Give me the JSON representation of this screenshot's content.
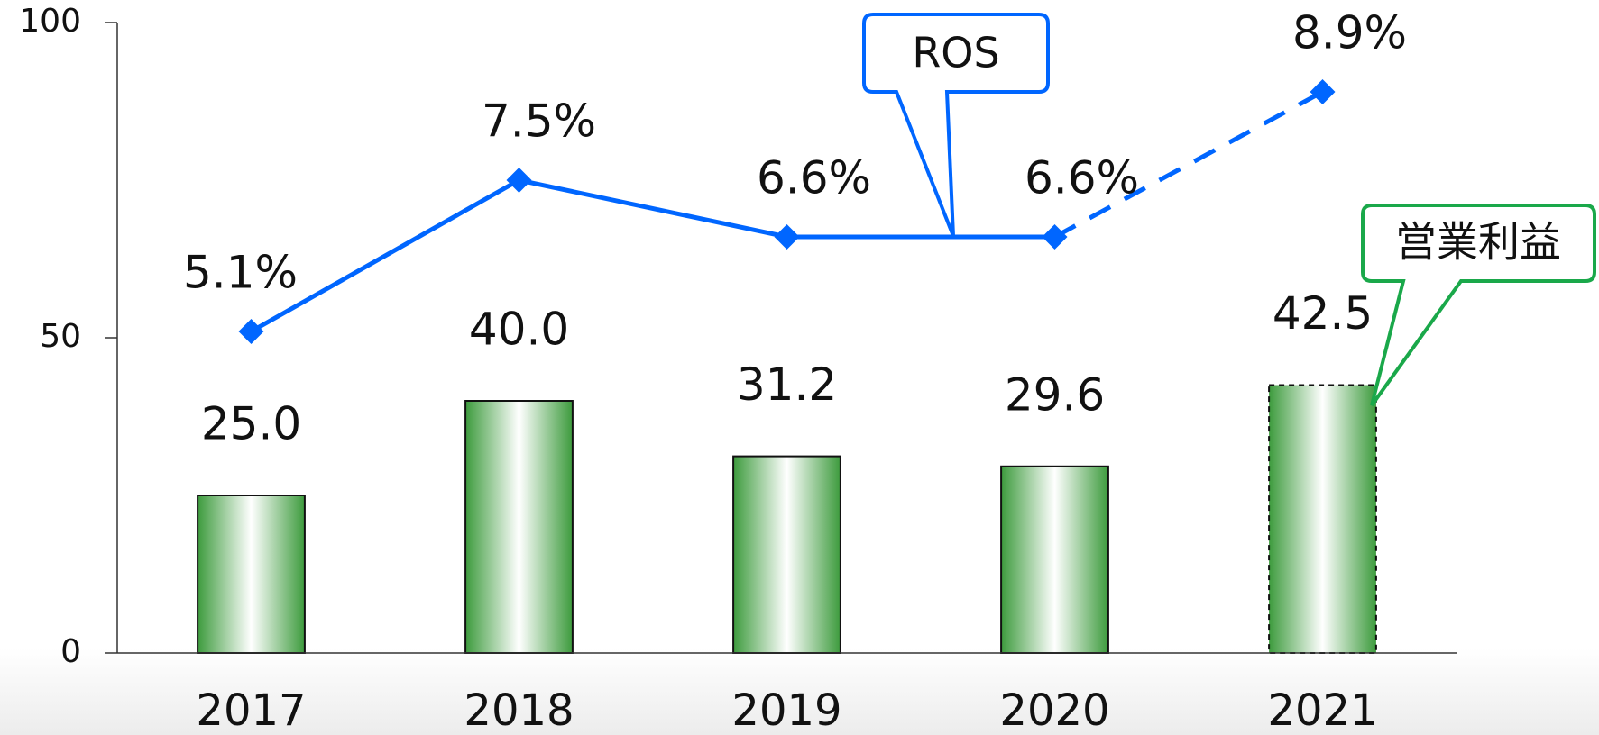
{
  "chart_data": {
    "type": "bar",
    "categories": [
      "2017",
      "2018",
      "2019",
      "2020",
      "2021"
    ],
    "series": [
      {
        "name": "営業利益",
        "type": "bar",
        "color": "#3d9b3d",
        "values": [
          25.0,
          40.0,
          31.2,
          29.6,
          42.5
        ],
        "value_labels": [
          "25.0",
          "40.0",
          "31.2",
          "29.6",
          "42.5"
        ],
        "dashed_from": 4
      },
      {
        "name": "ROS",
        "type": "line",
        "axis": "y2",
        "color": "#0066ff",
        "values": [
          5.1,
          7.5,
          6.6,
          6.6,
          8.9
        ],
        "value_labels": [
          "5.1%",
          "7.5%",
          "6.6%",
          "6.6%",
          "8.9%"
        ],
        "dashed_from": 4
      }
    ],
    "ylim": [
      0,
      100
    ],
    "yticks": [
      0,
      50,
      100
    ],
    "y2lim": [
      0,
      10
    ],
    "grid": false
  }
}
